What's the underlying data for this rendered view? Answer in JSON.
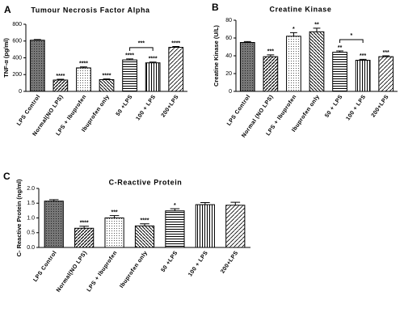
{
  "chart_data": [
    {
      "type": "bar",
      "panel_label": "A",
      "title": "Tumour Necrosis Factor Alpha",
      "y_label": "TNF-α (pg/ml)",
      "categories": [
        "LPS Control",
        "Normal(NO LPS)",
        "LPS + Ibuprofen",
        "Ibuprofen only",
        "50 +LPS",
        "100 + LPS",
        "200+LPS"
      ],
      "values": [
        610,
        135,
        280,
        140,
        375,
        340,
        525
      ],
      "errors": [
        8,
        10,
        12,
        8,
        12,
        10,
        10
      ],
      "annotations": [
        null,
        "****",
        "****",
        "****",
        "****",
        "****",
        "****"
      ],
      "bracket": {
        "span": [
          4,
          5
        ],
        "label": "***"
      },
      "ylim": [
        0,
        800
      ],
      "yticks": [
        0,
        200,
        400,
        600,
        800
      ]
    },
    {
      "type": "bar",
      "panel_label": "B",
      "title": "Creatine Kinase",
      "y_label": "Creatine Kinase (U/L)",
      "categories": [
        "LPS Control",
        "Normal (NO LPS)",
        "LPS + Ibuprofen",
        "Ibuprofen only",
        "50 + LPS",
        "100 + LPS",
        "200+LPS"
      ],
      "values": [
        55,
        39,
        62,
        67,
        44,
        35,
        39
      ],
      "errors": [
        1,
        2,
        4,
        4,
        1.5,
        1,
        1
      ],
      "annotations": [
        null,
        "***",
        "*",
        "**",
        "**",
        "***",
        "***"
      ],
      "bracket": {
        "span": [
          4,
          5
        ],
        "label": "*"
      },
      "ylim": [
        0,
        80
      ],
      "yticks": [
        0,
        20,
        40,
        60,
        80
      ]
    },
    {
      "type": "bar",
      "panel_label": "C",
      "title": "C-Reactive Protein",
      "y_label": "C- Reactive Protein (ng/ml)",
      "categories": [
        "LPS Control",
        "Normal(NO LPS)",
        "LPS + Ibuprofen",
        "Ibuprofen only",
        "50 +LPS",
        "100 + LPS",
        "200+LPS"
      ],
      "values": [
        1.57,
        0.65,
        1.0,
        0.73,
        1.24,
        1.45,
        1.43
      ],
      "errors": [
        0.05,
        0.07,
        0.08,
        0.07,
        0.07,
        0.07,
        0.1
      ],
      "annotations": [
        null,
        "****",
        "***",
        "****",
        "*",
        null,
        null
      ],
      "ylim": [
        0,
        2.0
      ],
      "yticks": [
        {
          "value": 0,
          "label": "0.0"
        },
        {
          "value": 0.5,
          "label": "0.5"
        },
        {
          "value": 1.0,
          "label": "1.0"
        },
        {
          "value": 1.5,
          "label": "1.5"
        },
        {
          "value": 2.0,
          "label": "2.0"
        }
      ]
    }
  ]
}
